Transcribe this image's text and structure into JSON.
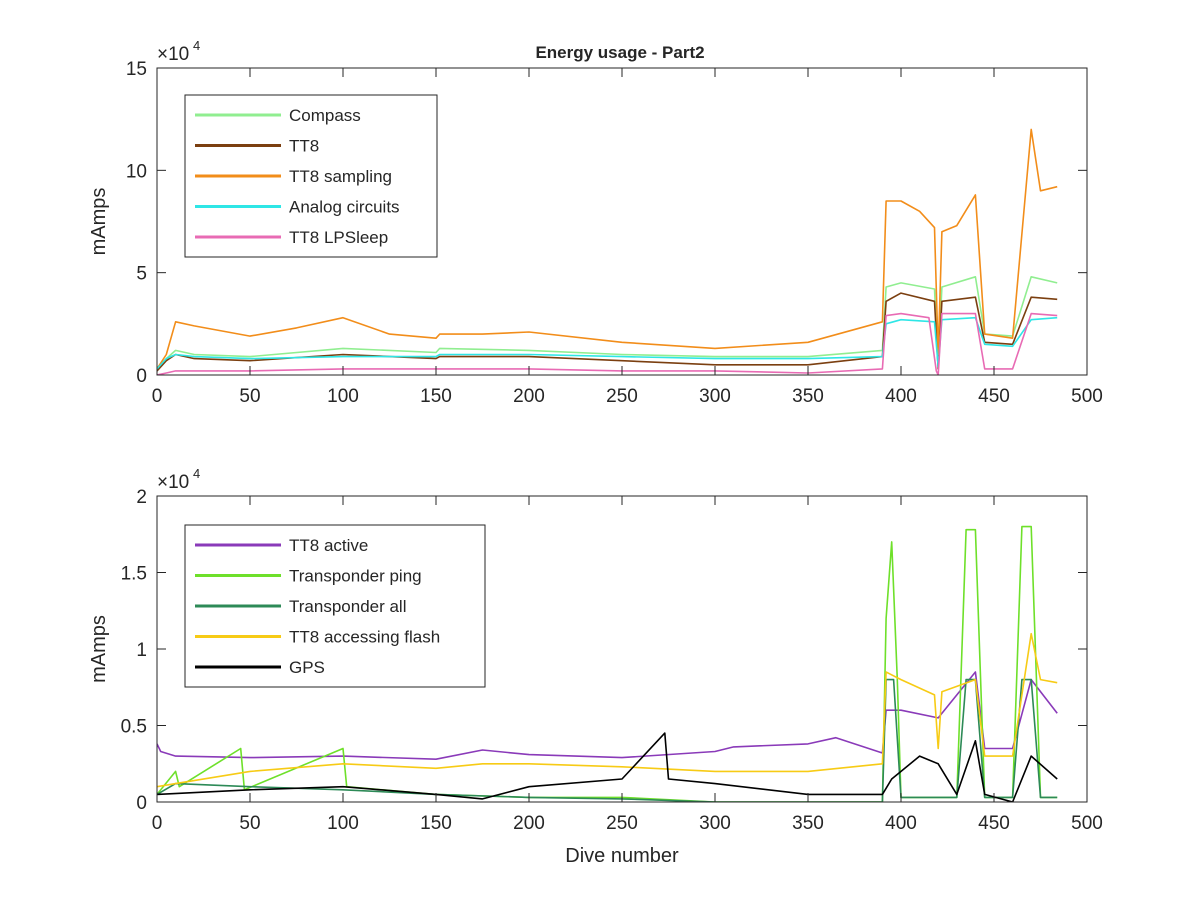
{
  "figure_title": "Energy usage - Part2",
  "chart_data": [
    {
      "type": "line",
      "title": "Energy usage - Part2",
      "xlabel": "",
      "ylabel": "mAmps",
      "exponent_label": "×10",
      "exponent_power": "4",
      "xlim": [
        0,
        500
      ],
      "ylim": [
        0,
        15
      ],
      "y_scale_factor": 10000,
      "xticks": [
        "0",
        "50",
        "100",
        "150",
        "200",
        "250",
        "300",
        "350",
        "400",
        "450",
        "500"
      ],
      "yticks": [
        "0",
        "5",
        "10",
        "15"
      ],
      "grid": false,
      "legend_position": "top-left",
      "series": [
        {
          "name": "Compass",
          "color": "#90ee90",
          "x": [
            0,
            5,
            10,
            20,
            50,
            100,
            150,
            152,
            200,
            250,
            300,
            350,
            390,
            392,
            400,
            418,
            420,
            422,
            440,
            445,
            460,
            470,
            484
          ],
          "y": [
            0.3,
            0.8,
            1.2,
            1.0,
            0.9,
            1.3,
            1.1,
            1.3,
            1.2,
            1.0,
            0.9,
            0.9,
            1.2,
            4.3,
            4.5,
            4.2,
            0.4,
            4.3,
            4.8,
            2.0,
            1.9,
            4.8,
            4.5
          ]
        },
        {
          "name": "TT8",
          "color": "#7b3f10",
          "x": [
            0,
            5,
            10,
            20,
            50,
            100,
            150,
            152,
            200,
            250,
            300,
            350,
            390,
            392,
            400,
            418,
            420,
            422,
            440,
            445,
            460,
            470,
            484
          ],
          "y": [
            0.2,
            0.7,
            1.0,
            0.8,
            0.7,
            1.0,
            0.8,
            0.9,
            0.9,
            0.7,
            0.5,
            0.5,
            0.9,
            3.6,
            4.0,
            3.6,
            0.3,
            3.6,
            3.8,
            1.6,
            1.5,
            3.8,
            3.7
          ]
        },
        {
          "name": "TT8 sampling",
          "color": "#f28d1a",
          "x": [
            0,
            5,
            10,
            20,
            50,
            75,
            100,
            125,
            150,
            152,
            175,
            200,
            250,
            300,
            350,
            390,
            392,
            400,
            410,
            418,
            420,
            422,
            430,
            440,
            445,
            460,
            470,
            475,
            484
          ],
          "y": [
            0.3,
            1.0,
            2.6,
            2.4,
            1.9,
            2.3,
            2.8,
            2.0,
            1.8,
            2.0,
            2.0,
            2.1,
            1.6,
            1.3,
            1.6,
            2.6,
            8.5,
            8.5,
            8.0,
            7.2,
            1.0,
            7.0,
            7.3,
            8.8,
            2.0,
            1.8,
            12.0,
            9.0,
            9.2
          ]
        },
        {
          "name": "Analog circuits",
          "color": "#2ee6e6",
          "x": [
            0,
            5,
            10,
            20,
            50,
            100,
            150,
            152,
            200,
            250,
            300,
            350,
            390,
            392,
            400,
            418,
            420,
            422,
            440,
            445,
            460,
            470,
            484
          ],
          "y": [
            0.3,
            0.8,
            1.0,
            0.9,
            0.8,
            0.9,
            0.9,
            1.0,
            1.0,
            0.9,
            0.8,
            0.8,
            0.9,
            2.5,
            2.7,
            2.6,
            0.4,
            2.7,
            2.8,
            1.5,
            1.4,
            2.7,
            2.8
          ]
        },
        {
          "name": "TT8 LPSleep",
          "color": "#e86bb4",
          "x": [
            0,
            5,
            10,
            20,
            50,
            100,
            150,
            152,
            200,
            250,
            300,
            350,
            390,
            392,
            400,
            415,
            419,
            420,
            422,
            440,
            445,
            460,
            470,
            484
          ],
          "y": [
            0.0,
            0.1,
            0.2,
            0.2,
            0.2,
            0.3,
            0.3,
            0.3,
            0.3,
            0.2,
            0.2,
            0.1,
            0.3,
            2.9,
            3.0,
            2.8,
            0.2,
            0.0,
            3.0,
            3.0,
            0.3,
            0.3,
            3.0,
            2.9
          ]
        }
      ]
    },
    {
      "type": "line",
      "title": "",
      "xlabel": "Dive number",
      "ylabel": "mAmps",
      "exponent_label": "×10",
      "exponent_power": "4",
      "xlim": [
        0,
        500
      ],
      "ylim": [
        0,
        2
      ],
      "y_scale_factor": 10000,
      "xticks": [
        "0",
        "50",
        "100",
        "150",
        "200",
        "250",
        "300",
        "350",
        "400",
        "450",
        "500"
      ],
      "yticks": [
        "0",
        "0.5",
        "1",
        "1.5",
        "2"
      ],
      "grid": false,
      "legend_position": "top-left",
      "series": [
        {
          "name": "TT8 active",
          "color": "#8a3ab9",
          "x": [
            0,
            2,
            10,
            50,
            100,
            150,
            175,
            200,
            250,
            300,
            310,
            350,
            365,
            390,
            392,
            400,
            420,
            440,
            445,
            460,
            470,
            484
          ],
          "y": [
            0.38,
            0.33,
            0.3,
            0.29,
            0.3,
            0.28,
            0.34,
            0.31,
            0.29,
            0.33,
            0.36,
            0.38,
            0.42,
            0.32,
            0.6,
            0.6,
            0.55,
            0.85,
            0.35,
            0.35,
            0.8,
            0.58
          ]
        },
        {
          "name": "Transponder ping",
          "color": "#6ee02a",
          "x": [
            0,
            10,
            12,
            45,
            47,
            100,
            102,
            150,
            200,
            250,
            300,
            390,
            392,
            395,
            398,
            400,
            430,
            435,
            440,
            445,
            460,
            465,
            470,
            475,
            484
          ],
          "y": [
            0.05,
            0.2,
            0.1,
            0.35,
            0.08,
            0.35,
            0.1,
            0.05,
            0.03,
            0.03,
            0.0,
            0.0,
            1.2,
            1.7,
            0.8,
            0.03,
            0.03,
            1.78,
            1.78,
            0.03,
            0.03,
            1.8,
            1.8,
            0.03,
            0.03
          ]
        },
        {
          "name": "Transponder all",
          "color": "#2d8a57",
          "x": [
            0,
            10,
            50,
            100,
            150,
            200,
            250,
            300,
            390,
            392,
            396,
            400,
            430,
            435,
            440,
            445,
            460,
            465,
            470,
            475,
            484
          ],
          "y": [
            0.05,
            0.12,
            0.1,
            0.08,
            0.05,
            0.03,
            0.02,
            0.0,
            0.0,
            0.8,
            0.8,
            0.03,
            0.03,
            0.8,
            0.8,
            0.03,
            0.03,
            0.8,
            0.8,
            0.03,
            0.03
          ]
        },
        {
          "name": "TT8 accessing flash",
          "color": "#f7cb15",
          "x": [
            0,
            10,
            50,
            100,
            150,
            175,
            200,
            250,
            300,
            350,
            390,
            392,
            400,
            418,
            420,
            422,
            440,
            445,
            460,
            470,
            475,
            484
          ],
          "y": [
            0.1,
            0.12,
            0.2,
            0.25,
            0.22,
            0.25,
            0.25,
            0.23,
            0.2,
            0.2,
            0.25,
            0.85,
            0.8,
            0.7,
            0.35,
            0.72,
            0.8,
            0.3,
            0.3,
            1.1,
            0.8,
            0.78
          ]
        },
        {
          "name": "GPS",
          "color": "#000000",
          "x": [
            0,
            50,
            100,
            150,
            175,
            200,
            250,
            273,
            275,
            300,
            350,
            390,
            395,
            400,
            410,
            420,
            430,
            440,
            445,
            460,
            470,
            484
          ],
          "y": [
            0.05,
            0.08,
            0.1,
            0.05,
            0.02,
            0.1,
            0.15,
            0.45,
            0.15,
            0.12,
            0.05,
            0.05,
            0.15,
            0.2,
            0.3,
            0.25,
            0.05,
            0.4,
            0.05,
            0.0,
            0.3,
            0.15
          ]
        }
      ]
    }
  ]
}
